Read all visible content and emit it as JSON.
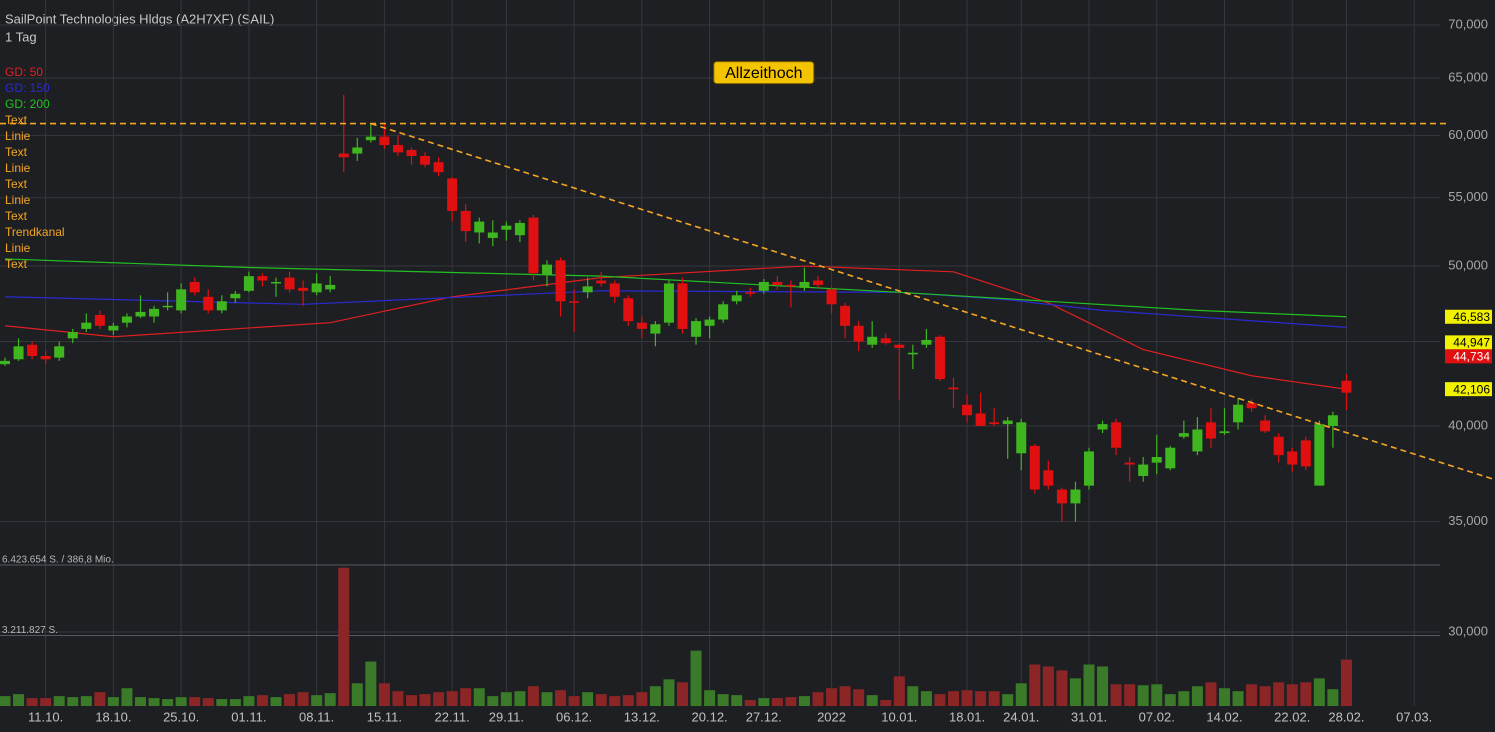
{
  "chart_data": {
    "type": "candlestick",
    "title": "SailPoint Technologies Hldgs (A2H7XF) (SAIL)",
    "subtitle": "1 Tag",
    "log_scale": true,
    "grid": true,
    "ylim": [
      30000,
      70000
    ],
    "yticks": [
      {
        "value": 30000,
        "label": "30,000"
      },
      {
        "value": 35000,
        "label": "35,000"
      },
      {
        "value": 40000,
        "label": "40,000"
      },
      {
        "value": 45000,
        "label": "45,000"
      },
      {
        "value": 50000,
        "label": "50,000"
      },
      {
        "value": 55000,
        "label": "55,000"
      },
      {
        "value": 60000,
        "label": "60,000"
      },
      {
        "value": 65000,
        "label": "65,000"
      },
      {
        "value": 70000,
        "label": "70,000"
      }
    ],
    "xticks": [
      {
        "value": 3,
        "label": "11.10."
      },
      {
        "value": 8,
        "label": "18.10."
      },
      {
        "value": 13,
        "label": "25.10."
      },
      {
        "value": 18,
        "label": "01.11."
      },
      {
        "value": 23,
        "label": "08.11."
      },
      {
        "value": 28,
        "label": "15.11."
      },
      {
        "value": 33,
        "label": "22.11."
      },
      {
        "value": 37,
        "label": "29.11."
      },
      {
        "value": 42,
        "label": "06.12."
      },
      {
        "value": 47,
        "label": "13.12."
      },
      {
        "value": 52,
        "label": "20.12."
      },
      {
        "value": 56,
        "label": "27.12."
      },
      {
        "value": 61,
        "label": "2022"
      },
      {
        "value": 66,
        "label": "10.01."
      },
      {
        "value": 71,
        "label": "18.01."
      },
      {
        "value": 75,
        "label": "24.01."
      },
      {
        "value": 80,
        "label": "31.01."
      },
      {
        "value": 85,
        "label": "07.02."
      },
      {
        "value": 90,
        "label": "14.02."
      },
      {
        "value": 95,
        "label": "22.02."
      },
      {
        "value": 99,
        "label": "28.02."
      },
      {
        "value": 104,
        "label": "07.03."
      }
    ],
    "up_color": "#3fb51f",
    "down_color": "#e01010",
    "open": [
      43600,
      43900,
      44800,
      44100,
      44000,
      45200,
      45800,
      46700,
      45700,
      46200,
      46600,
      46600,
      47200,
      47000,
      48900,
      47900,
      47000,
      47800,
      48300,
      49300,
      48800,
      49200,
      48500,
      48200,
      48400,
      58500,
      58500,
      59600,
      59900,
      59200,
      58800,
      58300,
      57800,
      56500,
      54000,
      52400,
      52000,
      52600,
      52200,
      53500,
      49400,
      50400,
      47600,
      48200,
      49000,
      48800,
      47800,
      46200,
      45500,
      46200,
      48800,
      45300,
      46000,
      46400,
      47600,
      48200,
      48300,
      48900,
      48700,
      48500,
      49000,
      48400,
      47300,
      46000,
      44800,
      45200,
      44800,
      44200,
      44800,
      45300,
      42200,
      41200,
      40700,
      40200,
      40100,
      38500,
      38900,
      37600,
      36600,
      35900,
      36800,
      39800,
      40200,
      38000,
      37300,
      38000,
      37700,
      39400,
      38600,
      40200,
      39600,
      40200,
      41300,
      40300,
      39400,
      38600,
      39200,
      36800,
      40000,
      42600
    ],
    "high": [
      44000,
      45200,
      45000,
      44400,
      45000,
      45800,
      46800,
      47000,
      46200,
      46800,
      48000,
      47300,
      48200,
      48800,
      49200,
      48400,
      48000,
      48300,
      49600,
      49500,
      49200,
      49600,
      49000,
      49500,
      49300,
      63500,
      59800,
      61000,
      61000,
      60000,
      59000,
      58600,
      58200,
      56600,
      54500,
      53500,
      53300,
      53200,
      53300,
      53700,
      50400,
      50600,
      48400,
      49200,
      49600,
      49000,
      48000,
      46600,
      46300,
      49000,
      49200,
      46500,
      46600,
      47600,
      48300,
      48500,
      49100,
      49300,
      49000,
      49900,
      49300,
      48600,
      47500,
      46300,
      46300,
      45500,
      44900,
      44800,
      45800,
      45400,
      42800,
      41800,
      41900,
      41000,
      40500,
      40400,
      39000,
      38100,
      36700,
      37000,
      38800,
      40300,
      40400,
      38300,
      38300,
      39500,
      38900,
      40300,
      40500,
      41000,
      41000,
      41600,
      41500,
      40600,
      39600,
      38800,
      39400,
      40300,
      40800,
      43000
    ],
    "low": [
      43500,
      43800,
      43900,
      43600,
      43800,
      44900,
      45600,
      45800,
      45400,
      45900,
      46500,
      46200,
      47000,
      46800,
      48000,
      46800,
      46800,
      47500,
      48200,
      48600,
      47900,
      48200,
      47300,
      48000,
      48200,
      57000,
      57900,
      59400,
      58900,
      58300,
      57600,
      57400,
      56700,
      53200,
      51700,
      51600,
      51400,
      51800,
      51700,
      49000,
      48600,
      46600,
      45600,
      47800,
      48600,
      47500,
      46000,
      45200,
      44700,
      46000,
      45500,
      44800,
      45200,
      46200,
      47400,
      47900,
      48100,
      48400,
      47200,
      48300,
      48500,
      46800,
      45200,
      44400,
      44600,
      44800,
      41500,
      43300,
      44600,
      42600,
      41000,
      40200,
      40000,
      40000,
      38200,
      37600,
      36400,
      36600,
      35000,
      35000,
      36600,
      39600,
      38400,
      37000,
      37000,
      37400,
      37600,
      39300,
      38400,
      38800,
      39500,
      39800,
      40800,
      39600,
      38000,
      37500,
      37600,
      36800,
      38800,
      40900
    ],
    "close": [
      43800,
      44700,
      44100,
      43900,
      44700,
      45600,
      46200,
      46000,
      46000,
      46600,
      46900,
      47100,
      47300,
      48400,
      48200,
      47000,
      47600,
      48100,
      49300,
      49000,
      48900,
      48400,
      48300,
      48800,
      48700,
      58200,
      59000,
      59900,
      59200,
      58600,
      58300,
      57600,
      57000,
      54000,
      52500,
      53200,
      52400,
      52900,
      53100,
      49500,
      50100,
      47600,
      47500,
      48600,
      48800,
      47900,
      46300,
      45800,
      46100,
      48800,
      45800,
      46300,
      46400,
      47400,
      48000,
      48100,
      48900,
      48700,
      48600,
      48900,
      48700,
      47400,
      46000,
      45000,
      45300,
      44900,
      44600,
      44300,
      45100,
      42700,
      42100,
      40600,
      40000,
      40100,
      40300,
      40200,
      36600,
      36800,
      35900,
      36600,
      38600,
      40100,
      38800,
      37900,
      37900,
      38300,
      38800,
      39600,
      39800,
      39300,
      39700,
      41200,
      41000,
      39700,
      38400,
      37900,
      37800,
      40100,
      40600,
      41900
    ],
    "volume": [
      450000,
      540000,
      360000,
      360000,
      450000,
      405000,
      450000,
      630000,
      405000,
      810000,
      405000,
      360000,
      315000,
      405000,
      405000,
      360000,
      315000,
      315000,
      450000,
      495000,
      405000,
      540000,
      630000,
      495000,
      585000,
      6300000,
      1035000,
      2025000,
      1035000,
      675000,
      495000,
      540000,
      630000,
      675000,
      810000,
      810000,
      450000,
      630000,
      675000,
      900000,
      630000,
      720000,
      450000,
      630000,
      540000,
      450000,
      495000,
      630000,
      900000,
      1215000,
      1080000,
      2520000,
      720000,
      540000,
      495000,
      270000,
      360000,
      360000,
      405000,
      450000,
      630000,
      810000,
      900000,
      765000,
      495000,
      270000,
      1350000,
      900000,
      675000,
      540000,
      675000,
      720000,
      675000,
      675000,
      540000,
      1035000,
      1890000,
      1800000,
      1620000,
      1260000,
      1890000,
      1800000,
      990000,
      990000,
      945000,
      990000,
      540000,
      675000,
      900000,
      1080000,
      810000,
      675000,
      990000,
      900000,
      1080000,
      990000,
      1080000,
      1260000,
      765000,
      2115000
    ],
    "volume_up_color": "#3a7a28",
    "volume_down_color": "#8c2626",
    "vlim": [
      0,
      6423654
    ],
    "vticks": [
      {
        "value": 6423654,
        "label": "6.423.654 S. / 386,8 Mio."
      },
      {
        "value": 3211827,
        "label": "3.211.827 S."
      }
    ],
    "series": [
      {
        "name": "GD: 50",
        "color": "#e02020",
        "x": [
          0,
          8,
          24,
          33,
          44,
          59,
          70,
          77,
          84,
          92,
          99
        ],
        "values": [
          46000,
          45300,
          46200,
          47900,
          49200,
          50000,
          49600,
          47500,
          44500,
          42900,
          42100
        ]
      },
      {
        "name": "GD: 150",
        "color": "#2a2ad0",
        "x": [
          0,
          22,
          44,
          66,
          74,
          81,
          99
        ],
        "values": [
          47900,
          47400,
          48300,
          48200,
          47700,
          47000,
          45900
        ]
      },
      {
        "name": "GD: 200",
        "color": "#22c022",
        "x": [
          0,
          18,
          44,
          66,
          77,
          88,
          99
        ],
        "values": [
          50500,
          49900,
          49300,
          48200,
          47600,
          47000,
          46583
        ]
      }
    ],
    "tools": [
      "Text",
      "Linie",
      "Text",
      "Linie",
      "Text",
      "Linie",
      "Text",
      "Trendkanal",
      "Linie",
      "Text"
    ],
    "tool_color": "#f5a623",
    "hline": 61000,
    "trendline": {
      "x": [
        27,
        110
      ],
      "values": [
        61000,
        37100
      ]
    },
    "annotation": {
      "text": "Allzeithoch",
      "x": 56,
      "value": 65500
    },
    "price_labels": [
      {
        "value": 46583,
        "label": "46,583",
        "bg": "#f2f200",
        "fg": "#000"
      },
      {
        "value": 44947,
        "label": "44,947",
        "bg": "#f2f200",
        "fg": "#000"
      },
      {
        "value": 44734,
        "label": "44,734",
        "bg": "#e01010",
        "fg": "#fff"
      },
      {
        "value": 42106,
        "label": "42,106",
        "bg": "#f2f200",
        "fg": "#000"
      }
    ]
  }
}
